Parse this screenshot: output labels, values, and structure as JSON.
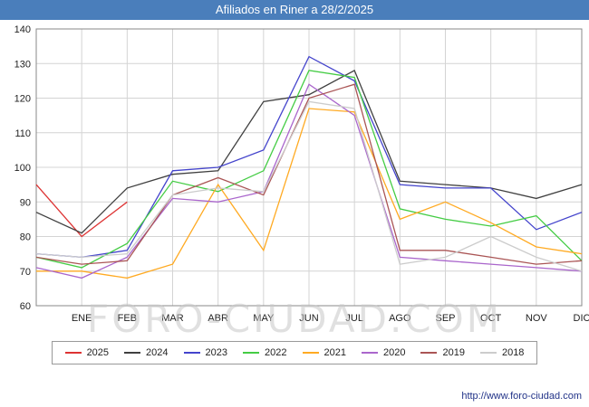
{
  "title": "Afiliados en Riner a 28/2/2025",
  "colors": {
    "titlebar": "#4a7ebb",
    "grid": "#d4d4d4",
    "plot_border": "#888888",
    "footer_link": "#223388"
  },
  "watermark": "FORO-CIUDAD.COM",
  "footer": {
    "url": "http://www.foro-ciudad.com"
  },
  "chart_data": {
    "type": "line",
    "title": "Afiliados en Riner a 28/2/2025",
    "xlabel": "",
    "ylabel": "",
    "ylim": [
      60,
      140
    ],
    "ytick_step": 10,
    "grid": true,
    "legend_position": "bottom",
    "x_labels": [
      "ENE",
      "FEB",
      "MAR",
      "ABR",
      "MAY",
      "JUN",
      "JUL",
      "AGO",
      "SEP",
      "OCT",
      "NOV",
      "DIC"
    ],
    "series_values_note": "first value of each series sits on the y-axis just before the ENE tick; remaining 12 values align with the month ticks",
    "series": [
      {
        "name": "2025",
        "color": "#dd3333",
        "values": [
          95,
          80,
          90,
          null,
          null,
          null,
          null,
          null,
          null,
          null,
          null,
          null,
          null
        ]
      },
      {
        "name": "2024",
        "color": "#404040",
        "values": [
          87,
          81,
          94,
          98,
          99,
          119,
          121,
          128,
          96,
          95,
          94,
          91,
          95
        ]
      },
      {
        "name": "2023",
        "color": "#4444cc",
        "values": [
          75,
          74,
          76,
          99,
          100,
          105,
          132,
          125,
          95,
          94,
          94,
          82,
          87
        ]
      },
      {
        "name": "2022",
        "color": "#44cc44",
        "values": [
          74,
          71,
          78,
          96,
          93,
          99,
          128,
          126,
          88,
          85,
          83,
          86,
          73
        ]
      },
      {
        "name": "2021",
        "color": "#ffaa22",
        "values": [
          70,
          70,
          68,
          72,
          95,
          76,
          117,
          116,
          85,
          90,
          84,
          77,
          75
        ]
      },
      {
        "name": "2020",
        "color": "#aa66cc",
        "values": [
          71,
          68,
          74,
          91,
          90,
          93,
          124,
          115,
          74,
          73,
          72,
          71,
          70
        ]
      },
      {
        "name": "2019",
        "color": "#aa5555",
        "values": [
          74,
          72,
          73,
          92,
          97,
          92,
          120,
          124,
          76,
          76,
          74,
          72,
          73
        ]
      },
      {
        "name": "2018",
        "color": "#cccccc",
        "values": [
          75,
          74,
          75,
          92,
          94,
          93,
          119,
          117,
          72,
          74,
          80,
          74,
          70
        ]
      }
    ]
  }
}
